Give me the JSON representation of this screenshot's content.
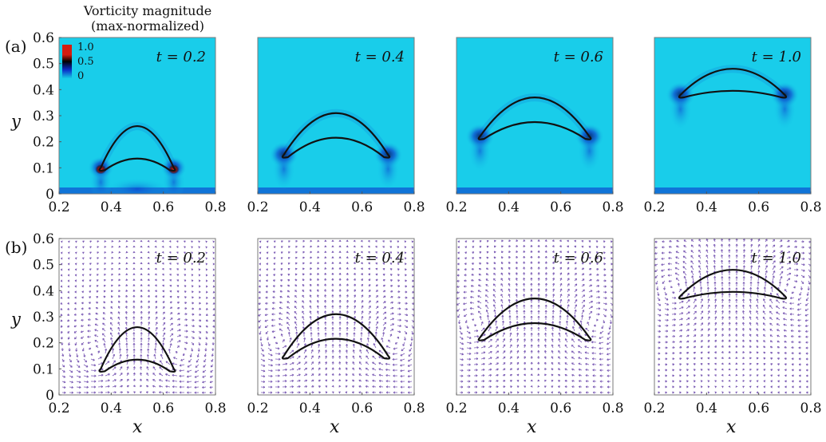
{
  "figure": {
    "colorbar": {
      "title_line1": "Vorticity magnitude",
      "title_line2": "(max-normalized)",
      "ticks": [
        "1.0",
        "0.5",
        "0"
      ],
      "colors": [
        "#d41d10",
        "#000000",
        "#0a2cc8",
        "#14c8e6"
      ]
    },
    "row_labels": [
      "(a)",
      "(b)"
    ],
    "xlabel": "x",
    "ylabel": "y",
    "x_ticks": [
      "0.2",
      "0.4",
      "0.6",
      "0.8"
    ],
    "y_ticks": [
      "0",
      "0.1",
      "0.2",
      "0.3",
      "0.4",
      "0.5",
      "0.6"
    ],
    "xlim": [
      0.2,
      0.8
    ],
    "ylim": [
      0,
      0.6
    ],
    "panel_background": "#19cdea",
    "contour_color": "#111111",
    "arrow_color": "#7a5ab4",
    "times": [
      "t = 0.2",
      "t = 0.4",
      "t = 0.6",
      "t = 1.0"
    ]
  },
  "chart_data": [
    {
      "type": "heatmap",
      "row": "(a)",
      "title": "t = 0.2",
      "xlim": [
        0.2,
        0.8
      ],
      "ylim": [
        0,
        0.6
      ],
      "bubble": {
        "x_left": 0.36,
        "x_right": 0.64,
        "y_tip": 0.1,
        "y_top": 0.26,
        "y_bottom": 0.14
      }
    },
    {
      "type": "heatmap",
      "row": "(a)",
      "title": "t = 0.4",
      "xlim": [
        0.2,
        0.8
      ],
      "ylim": [
        0,
        0.6
      ],
      "bubble": {
        "x_left": 0.3,
        "x_right": 0.7,
        "y_tip": 0.15,
        "y_top": 0.31,
        "y_bottom": 0.22
      }
    },
    {
      "type": "heatmap",
      "row": "(a)",
      "title": "t = 0.6",
      "xlim": [
        0.2,
        0.8
      ],
      "ylim": [
        0,
        0.6
      ],
      "bubble": {
        "x_left": 0.29,
        "x_right": 0.71,
        "y_tip": 0.22,
        "y_top": 0.37,
        "y_bottom": 0.28
      }
    },
    {
      "type": "heatmap",
      "row": "(a)",
      "title": "t = 1.0",
      "xlim": [
        0.2,
        0.8
      ],
      "ylim": [
        0,
        0.6
      ],
      "bubble": {
        "x_left": 0.3,
        "x_right": 0.7,
        "y_tip": 0.38,
        "y_top": 0.48,
        "y_bottom": 0.4
      }
    },
    {
      "type": "scatter",
      "row": "(b)",
      "title": "t = 0.2",
      "xlim": [
        0.2,
        0.8
      ],
      "ylim": [
        0,
        0.6
      ],
      "bubble": {
        "x_left": 0.36,
        "x_right": 0.64,
        "y_tip": 0.1,
        "y_top": 0.26,
        "y_bottom": 0.14
      }
    },
    {
      "type": "scatter",
      "row": "(b)",
      "title": "t = 0.4",
      "xlim": [
        0.2,
        0.8
      ],
      "ylim": [
        0,
        0.6
      ],
      "bubble": {
        "x_left": 0.3,
        "x_right": 0.7,
        "y_tip": 0.15,
        "y_top": 0.31,
        "y_bottom": 0.22
      }
    },
    {
      "type": "scatter",
      "row": "(b)",
      "title": "t = 0.6",
      "xlim": [
        0.2,
        0.8
      ],
      "ylim": [
        0,
        0.6
      ],
      "bubble": {
        "x_left": 0.29,
        "x_right": 0.71,
        "y_tip": 0.22,
        "y_top": 0.37,
        "y_bottom": 0.28
      }
    },
    {
      "type": "scatter",
      "row": "(b)",
      "title": "t = 1.0",
      "xlim": [
        0.2,
        0.8
      ],
      "ylim": [
        0,
        0.6
      ],
      "bubble": {
        "x_left": 0.3,
        "x_right": 0.7,
        "y_tip": 0.38,
        "y_top": 0.48,
        "y_bottom": 0.4
      }
    }
  ]
}
